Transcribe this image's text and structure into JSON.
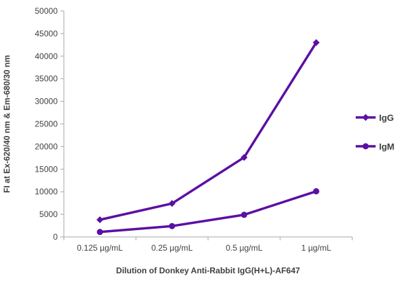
{
  "chart_data": {
    "type": "line",
    "categories": [
      "0.125 µg/mL",
      "0.25 µg/mL",
      "0.5 µg/mL",
      "1 µg/mL"
    ],
    "series": [
      {
        "name": "IgG",
        "values": [
          3800,
          7400,
          17600,
          43000
        ],
        "marker": "diamond",
        "color": "#5b10a3"
      },
      {
        "name": "IgM",
        "values": [
          1100,
          2400,
          4900,
          10100
        ],
        "marker": "circle",
        "color": "#5b10a3"
      }
    ],
    "xlabel": "Dilution of Donkey Anti-Rabbit IgG(H+L)-AF647",
    "ylabel": "FI at Ex-620/40 nm & Em-680/30 nm",
    "ylim": [
      0,
      50000
    ],
    "yticks": [
      0,
      5000,
      10000,
      15000,
      20000,
      25000,
      30000,
      35000,
      40000,
      45000,
      50000
    ],
    "grid": false,
    "legend_position": "right",
    "axis_color": "#a6a6a6"
  }
}
